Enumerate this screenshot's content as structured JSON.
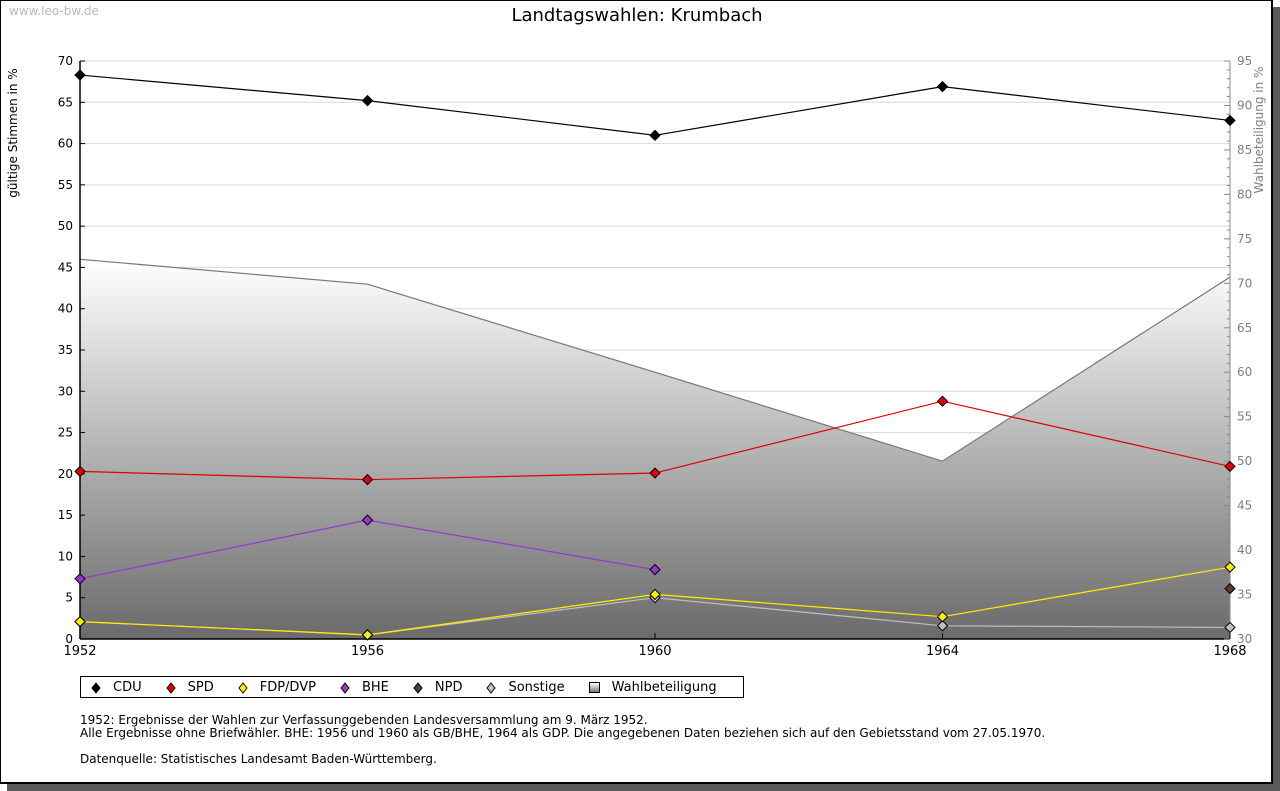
{
  "watermark": "www.leo-bw.de",
  "legend": [
    {
      "label": "CDU",
      "color": "#000000",
      "shape": "diamond"
    },
    {
      "label": "SPD",
      "color": "#e00000",
      "shape": "diamond"
    },
    {
      "label": "FDP/DVP",
      "color": "#ffee00",
      "shape": "diamond"
    },
    {
      "label": "BHE",
      "color": "#9933cc",
      "shape": "diamond"
    },
    {
      "label": "NPD",
      "color": "#5a3a28",
      "shape": "diamond"
    },
    {
      "label": "Sonstige",
      "color": "#c0c0c0",
      "shape": "diamond"
    },
    {
      "label": "Wahlbeteiligung",
      "color": "#888888",
      "shape": "square"
    }
  ],
  "notes": {
    "line1": "1952: Ergebnisse der Wahlen zur Verfassunggebenden Landesversammlung am 9. März 1952.",
    "line2": "Alle Ergebnisse ohne Briefwähler. BHE: 1956 und 1960 als GB/BHE, 1964 als GDP. Die angegebenen Daten beziehen sich auf den Gebietsstand vom 27.05.1970.",
    "line3": "Datenquelle: Statistisches Landesamt Baden-Württemberg."
  },
  "chart_data": {
    "type": "line",
    "title": "Landtagswahlen: Krumbach",
    "xlabel": "",
    "ylabel": "gültige Stimmen in %",
    "y2label": "Wahlbeteiligung in %",
    "x": [
      1952,
      1956,
      1960,
      1964,
      1968
    ],
    "xticks": [
      "1952",
      "1956",
      "1960",
      "1964",
      "1968"
    ],
    "ylim": [
      0,
      70
    ],
    "yticks": [
      0,
      5,
      10,
      15,
      20,
      25,
      30,
      35,
      40,
      45,
      50,
      55,
      60,
      65,
      70
    ],
    "y2lim": [
      30,
      95
    ],
    "y2ticks": [
      30,
      35,
      40,
      45,
      50,
      55,
      60,
      65,
      70,
      75,
      80,
      85,
      90,
      95
    ],
    "grid": true,
    "legend_position": "bottom",
    "series": [
      {
        "name": "CDU",
        "color": "#000000",
        "values": [
          68.3,
          65.2,
          61.0,
          66.9,
          62.8
        ]
      },
      {
        "name": "SPD",
        "color": "#e00000",
        "values": [
          20.3,
          19.3,
          20.1,
          28.8,
          20.9
        ]
      },
      {
        "name": "FDP/DVP",
        "color": "#ffee00",
        "values": [
          2.1,
          0.5,
          5.4,
          2.7,
          8.7
        ]
      },
      {
        "name": "BHE",
        "color": "#9933cc",
        "values": [
          7.3,
          14.4,
          8.4,
          null,
          null
        ]
      },
      {
        "name": "NPD",
        "color": "#5a3a28",
        "values": [
          null,
          null,
          null,
          null,
          6.1
        ]
      },
      {
        "name": "Sonstige",
        "color": "#c0c0c0",
        "values": [
          2.1,
          0.5,
          5.0,
          1.6,
          1.4
        ]
      }
    ],
    "area_series": {
      "name": "Wahlbeteiligung",
      "axis": "right",
      "values": [
        72.7,
        69.9,
        60.0,
        50.0,
        70.7
      ]
    }
  }
}
